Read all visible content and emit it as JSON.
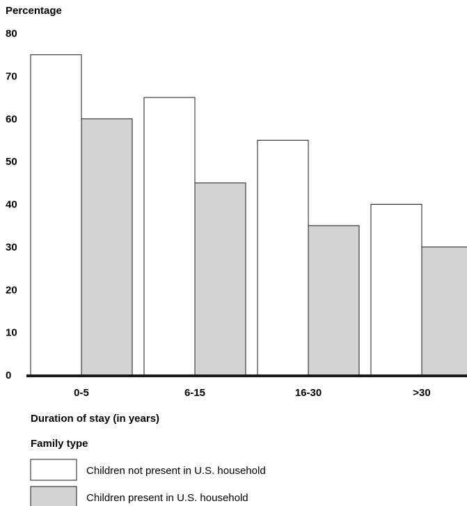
{
  "chart_data": {
    "type": "bar",
    "title": "",
    "ylabel": "Percentage",
    "xlabel": "Duration of stay (in years)",
    "categories": [
      "0-5",
      "6-15",
      "16-30",
      ">30"
    ],
    "ylim": [
      0,
      80
    ],
    "yticks": [
      0,
      10,
      20,
      30,
      40,
      50,
      60,
      70,
      80
    ],
    "grid": false,
    "legend_title": "Family type",
    "legend_position": "bottom-left",
    "series": [
      {
        "name": "Children not present in U.S. household",
        "values": [
          75,
          65,
          55,
          40
        ],
        "fill": "#ffffff"
      },
      {
        "name": "Children present in U.S. household",
        "values": [
          60,
          45,
          35,
          30
        ],
        "fill": "#d3d3d3"
      }
    ],
    "colors": {
      "stroke": "#1a1a1a",
      "axis": "#1a1a1a"
    }
  }
}
